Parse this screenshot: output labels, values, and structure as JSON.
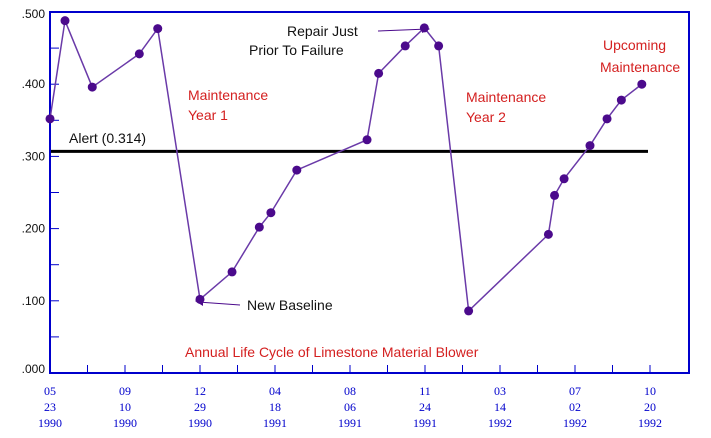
{
  "chart_data": {
    "type": "line",
    "title": "Annual Life Cycle of Limestone Material Blower",
    "ylim": [
      0,
      0.5
    ],
    "y_ticks": [
      ".000",
      ".100",
      ".200",
      ".300",
      ".400",
      ".500"
    ],
    "x_tick_labels": [
      {
        "month": "05",
        "day": "23",
        "year": "1990"
      },
      {
        "month": "09",
        "day": "10",
        "year": "1990"
      },
      {
        "month": "12",
        "day": "29",
        "year": "1990"
      },
      {
        "month": "04",
        "day": "18",
        "year": "1991"
      },
      {
        "month": "08",
        "day": "06",
        "year": "1991"
      },
      {
        "month": "11",
        "day": "24",
        "year": "1991"
      },
      {
        "month": "03",
        "day": "14",
        "year": "1992"
      },
      {
        "month": "07",
        "day": "02",
        "year": "1992"
      },
      {
        "month": "10",
        "day": "20",
        "year": "1992"
      }
    ],
    "series": [
      {
        "x": [
          "1990-05-23",
          "1990-06-14",
          "1990-07-24",
          "1990-10-01",
          "1990-10-28",
          "1990-12-29",
          "1991-02-14",
          "1991-03-26",
          "1991-04-12",
          "1991-05-20",
          "1991-08-31",
          "1991-09-17",
          "1991-10-26",
          "1991-11-23",
          "1991-12-14",
          "1992-01-27",
          "1992-05-23",
          "1992-06-01",
          "1992-06-15",
          "1992-07-23",
          "1992-08-17",
          "1992-09-07",
          "1992-10-07"
        ],
        "values": [
          0.352,
          0.488,
          0.396,
          0.442,
          0.477,
          0.102,
          0.14,
          0.202,
          0.222,
          0.281,
          0.323,
          0.415,
          0.453,
          0.478,
          0.453,
          0.086,
          0.192,
          0.246,
          0.269,
          0.315,
          0.352,
          0.378,
          0.4
        ],
        "color": "#4b0a8c"
      }
    ],
    "alert": {
      "value": 0.314,
      "label": "Alert (0.314)"
    },
    "annotations": {
      "repair_line1": "Repair Just",
      "repair_line2": "Prior To Failure",
      "maint1_line1": "Maintenance",
      "maint1_line2": "Year 1",
      "maint2_line1": "Maintenance",
      "maint2_line2": "Year 2",
      "upcoming_line1": "Upcoming",
      "upcoming_line2": "Maintenance",
      "new_baseline": "New Baseline"
    },
    "colors": {
      "frame": "#0000cc",
      "line": "#6a3aa8",
      "marker": "#4b0a8c",
      "alert": "#000000",
      "annotation_red": "#d42020",
      "annotation_black": "#111111"
    },
    "grid": false
  }
}
